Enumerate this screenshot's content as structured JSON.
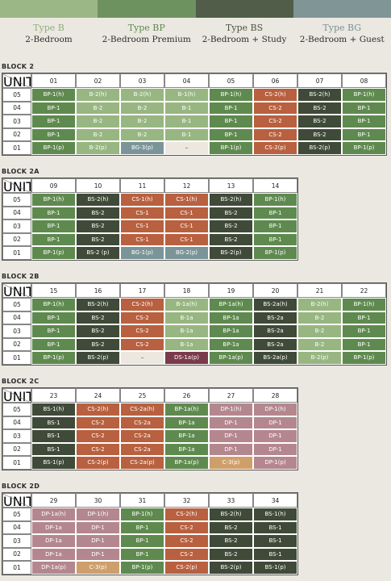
{
  "legend": [
    {
      "type": "Type B",
      "name": "2-Bedroom"
    },
    {
      "type": "Type BP",
      "name": "2-Bedroom Premium"
    },
    {
      "type": "Type BS",
      "name": "2-Bedroom + Study"
    },
    {
      "type": "Type BG",
      "name": "2-Bedroom + Guest"
    }
  ],
  "blocks": [
    {
      "title": "BLOCK 2",
      "corner": {
        "unit": "UNIT",
        "floor": "FLOOR"
      },
      "units": [
        "01",
        "02",
        "03",
        "04",
        "05",
        "06",
        "07",
        "08"
      ],
      "rows": [
        {
          "floor": "05",
          "cells": [
            "BP-1(h)",
            "B-2(h)",
            "B-2(h)",
            "B-1(h)",
            "BP-1(h)",
            "CS-2(h)",
            "BS-2(h)",
            "BP-1(h)"
          ]
        },
        {
          "floor": "04",
          "cells": [
            "BP-1",
            "B-2",
            "B-2",
            "B-1",
            "BP-1",
            "CS-2",
            "BS-2",
            "BP-1"
          ]
        },
        {
          "floor": "03",
          "cells": [
            "BP-1",
            "B-2",
            "B-2",
            "B-1",
            "BP-1",
            "CS-2",
            "BS-2",
            "BP-1"
          ]
        },
        {
          "floor": "02",
          "cells": [
            "BP-1",
            "B-2",
            "B-2",
            "B-1",
            "BP-1",
            "CS-2",
            "BS-2",
            "BP-1"
          ]
        },
        {
          "floor": "01",
          "cells": [
            "BP-1(p)",
            "B-2(p)",
            "BG-3(p)",
            "–",
            "BP-1(p)",
            "CS-2(p)",
            "BS-2(p)",
            "BP-1(p)"
          ]
        }
      ]
    },
    {
      "title": "BLOCK 2A",
      "corner": {
        "unit": "UNIT",
        "floor": "FLOOR"
      },
      "units": [
        "09",
        "10",
        "11",
        "12",
        "13",
        "14"
      ],
      "rows": [
        {
          "floor": "05",
          "cells": [
            "BP-1(h)",
            "BS-2(h)",
            "CS-1(h)",
            "CS-1(h)",
            "BS-2(h)",
            "BP-1(h)"
          ]
        },
        {
          "floor": "04",
          "cells": [
            "BP-1",
            "BS-2",
            "CS-1",
            "CS-1",
            "BS-2",
            "BP-1"
          ]
        },
        {
          "floor": "03",
          "cells": [
            "BP-1",
            "BS-2",
            "CS-1",
            "CS-1",
            "BS-2",
            "BP-1"
          ]
        },
        {
          "floor": "02",
          "cells": [
            "BP-1",
            "BS-2",
            "CS-1",
            "CS-1",
            "BS-2",
            "BP-1"
          ]
        },
        {
          "floor": "01",
          "cells": [
            "BP-1(p)",
            "BS-2 (p)",
            "BG-1(p)",
            "BG-2(p)",
            "BS-2(p)",
            "BP-1(p)"
          ]
        }
      ]
    },
    {
      "title": "BLOCK 2B",
      "corner": {
        "unit": "UNIT",
        "floor": "FLOOR"
      },
      "units": [
        "15",
        "16",
        "17",
        "18",
        "19",
        "20",
        "21",
        "22"
      ],
      "rows": [
        {
          "floor": "05",
          "cells": [
            "BP-1(h)",
            "BS-2(h)",
            "CS-2(h)",
            "B-1a(h)",
            "BP-1a(h)",
            "BS-2a(h)",
            "B-2(h)",
            "BP-1(h)"
          ]
        },
        {
          "floor": "04",
          "cells": [
            "BP-1",
            "BS-2",
            "CS-2",
            "B-1a",
            "BP-1a",
            "BS-2a",
            "B-2",
            "BP-1"
          ]
        },
        {
          "floor": "03",
          "cells": [
            "BP-1",
            "BS-2",
            "CS-2",
            "B-1a",
            "BP-1a",
            "BS-2a",
            "B-2",
            "BP-1"
          ]
        },
        {
          "floor": "02",
          "cells": [
            "BP-1",
            "BS-2",
            "CS-2",
            "B-1a",
            "BP-1a",
            "BS-2a",
            "B-2",
            "BP-1"
          ]
        },
        {
          "floor": "01",
          "cells": [
            "BP-1(p)",
            "BS-2(p)",
            "–",
            "DS-1a(p)",
            "BP-1a(p)",
            "BS-2a(p)",
            "B-2(p)",
            "BP-1(p)"
          ]
        }
      ]
    },
    {
      "title": "BLOCK 2C",
      "corner": {
        "unit": "UNIT",
        "floor": "FLOOR"
      },
      "units": [
        "23",
        "24",
        "25",
        "26",
        "27",
        "28"
      ],
      "rows": [
        {
          "floor": "05",
          "cells": [
            "BS-1(h)",
            "CS-2(h)",
            "CS-2a(h)",
            "BP-1a(h)",
            "DP-1(h)",
            "DP-1(h)"
          ]
        },
        {
          "floor": "04",
          "cells": [
            "BS-1",
            "CS-2",
            "CS-2a",
            "BP-1a",
            "DP-1",
            "DP-1"
          ]
        },
        {
          "floor": "03",
          "cells": [
            "BS-1",
            "CS-2",
            "CS-2a",
            "BP-1a",
            "DP-1",
            "DP-1"
          ]
        },
        {
          "floor": "02",
          "cells": [
            "BS-1",
            "CS-2",
            "CS-2a",
            "BP-1a",
            "DP-1",
            "DP-1"
          ]
        },
        {
          "floor": "01",
          "cells": [
            "BS-1(p)",
            "CS-2(p)",
            "CS-2a(p)",
            "BP-1a(p)",
            "C-3(p)",
            "DP-1(p)"
          ]
        }
      ]
    },
    {
      "title": "BLOCK 2D",
      "corner": {
        "unit": "UNIT",
        "floor": "FLOOR"
      },
      "units": [
        "29",
        "30",
        "31",
        "32",
        "33",
        "34"
      ],
      "rows": [
        {
          "floor": "05",
          "cells": [
            "DP-1a(h)",
            "DP-1(h)",
            "BP-1(h)",
            "CS-2(h)",
            "BS-2(h)",
            "BS-1(h)"
          ]
        },
        {
          "floor": "04",
          "cells": [
            "DP-1a",
            "DP-1",
            "BP-1",
            "CS-2",
            "BS-2",
            "BS-1"
          ]
        },
        {
          "floor": "03",
          "cells": [
            "DP-1a",
            "DP-1",
            "BP-1",
            "CS-2",
            "BS-2",
            "BS-1"
          ]
        },
        {
          "floor": "02",
          "cells": [
            "DP-1a",
            "DP-1",
            "BP-1",
            "CS-2",
            "BS-2",
            "BS-1"
          ]
        },
        {
          "floor": "01",
          "cells": [
            "DP-1a(p)",
            "C-3(p)",
            "BP-1(p)",
            "CS-2(p)",
            "BS-2(p)",
            "BS-1(p)"
          ]
        }
      ]
    }
  ]
}
